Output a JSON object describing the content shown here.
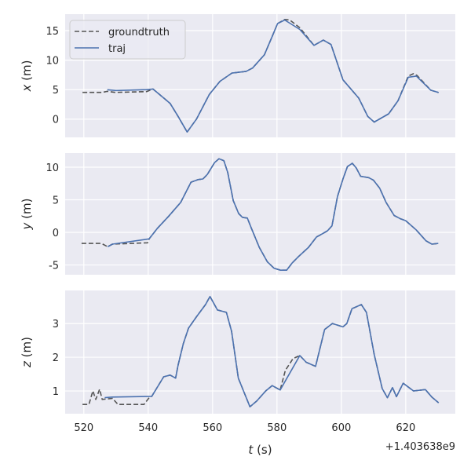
{
  "chart_data": [
    {
      "type": "line",
      "ylabel_var": "x",
      "ylabel_unit": "(m)",
      "xlim": [
        514.2,
        635.4
      ],
      "ylim": [
        -3.1,
        17.8
      ],
      "yticks": [
        0,
        5,
        10,
        15
      ],
      "grid": true,
      "legend": {
        "placement": "top-left"
      },
      "series": [
        {
          "name": "groundtruth",
          "style": "dashed",
          "color": "#555555",
          "points": [
            [
              519.6,
              4.53
            ],
            [
              525.7,
              4.53
            ],
            [
              527.3,
              4.7
            ],
            [
              529.8,
              4.53
            ],
            [
              539.5,
              4.66
            ],
            [
              541.5,
              5.1
            ],
            [
              546.8,
              2.66
            ],
            [
              549.3,
              0.45
            ],
            [
              552.1,
              -2.2
            ],
            [
              555,
              0
            ],
            [
              559,
              4.2
            ],
            [
              562.3,
              6.4
            ],
            [
              566,
              7.8
            ],
            [
              570.4,
              8.1
            ],
            [
              572.4,
              8.65
            ],
            [
              576.1,
              10.9
            ],
            [
              578.5,
              14
            ],
            [
              580.2,
              16.2
            ],
            [
              582.4,
              16.9
            ],
            [
              584,
              16.8
            ],
            [
              587.1,
              15.5
            ],
            [
              591.5,
              12.5
            ],
            [
              594.4,
              13.4
            ],
            [
              596.8,
              12.65
            ],
            [
              600.5,
              6.66
            ],
            [
              605.4,
              3.55
            ],
            [
              608.2,
              0.45
            ],
            [
              610.2,
              -0.5
            ],
            [
              614.7,
              0.9
            ],
            [
              617.6,
              3.1
            ],
            [
              620.8,
              7.3
            ],
            [
              622.4,
              7.7
            ],
            [
              623.5,
              7.4
            ],
            [
              627.8,
              4.9
            ],
            [
              630.2,
              4.5
            ]
          ]
        },
        {
          "name": "traj",
          "style": "solid",
          "color": "#4c72b0",
          "points": [
            [
              527.3,
              4.98
            ],
            [
              530,
              4.85
            ],
            [
              539.5,
              5.0
            ],
            [
              541.5,
              5.1
            ],
            [
              546.8,
              2.66
            ],
            [
              549.3,
              0.45
            ],
            [
              552.1,
              -2.2
            ],
            [
              555,
              0
            ],
            [
              559,
              4.2
            ],
            [
              562.3,
              6.4
            ],
            [
              566,
              7.8
            ],
            [
              570.4,
              8.1
            ],
            [
              572.4,
              8.65
            ],
            [
              576.1,
              10.9
            ],
            [
              578.5,
              14
            ],
            [
              580.2,
              16.2
            ],
            [
              582.4,
              16.8
            ],
            [
              587.1,
              15.2
            ],
            [
              591.5,
              12.5
            ],
            [
              594.4,
              13.4
            ],
            [
              596.8,
              12.65
            ],
            [
              600.5,
              6.66
            ],
            [
              605.4,
              3.55
            ],
            [
              608.2,
              0.45
            ],
            [
              610.2,
              -0.5
            ],
            [
              614.7,
              0.9
            ],
            [
              617.6,
              3.1
            ],
            [
              620.8,
              7.1
            ],
            [
              623.3,
              7.3
            ],
            [
              627.8,
              4.9
            ],
            [
              630.2,
              4.5
            ]
          ]
        }
      ]
    },
    {
      "type": "line",
      "ylabel_var": "y",
      "ylabel_unit": "(m)",
      "xlim": [
        514.2,
        635.4
      ],
      "ylim": [
        -6.5,
        12.17
      ],
      "yticks": [
        -5,
        0,
        5,
        10
      ],
      "grid": true,
      "series": [
        {
          "name": "groundtruth",
          "style": "dashed",
          "color": "#555555",
          "points": [
            [
              519.3,
              -1.7
            ],
            [
              525.5,
              -1.7
            ],
            [
              527.4,
              -2.2
            ],
            [
              528.9,
              -1.8
            ],
            [
              539.8,
              -1.6
            ],
            [
              540.3,
              -1.0
            ],
            [
              542.8,
              0.6
            ],
            [
              546.4,
              2.5
            ],
            [
              550.1,
              4.6
            ],
            [
              553.3,
              7.7
            ],
            [
              555.5,
              8.1
            ],
            [
              557,
              8.2
            ],
            [
              558.4,
              8.9
            ],
            [
              560.6,
              10.7
            ],
            [
              562,
              11.3
            ],
            [
              563.5,
              11
            ],
            [
              564.7,
              9.2
            ],
            [
              566.4,
              4.9
            ],
            [
              568.1,
              2.9
            ],
            [
              569.3,
              2.3
            ],
            [
              570.8,
              2.2
            ],
            [
              572,
              0.7
            ],
            [
              574.5,
              -2.3
            ],
            [
              577,
              -4.5
            ],
            [
              579.1,
              -5.5
            ],
            [
              581.1,
              -5.8
            ],
            [
              583,
              -5.8
            ],
            [
              584.7,
              -4.7
            ],
            [
              586.7,
              -3.7
            ],
            [
              589.8,
              -2.3
            ],
            [
              592.3,
              -0.7
            ],
            [
              594,
              -0.25
            ],
            [
              595.7,
              0.25
            ],
            [
              597.1,
              1.0
            ],
            [
              598.8,
              5.5
            ],
            [
              600.5,
              8.2
            ],
            [
              601.9,
              10.1
            ],
            [
              603.4,
              10.6
            ],
            [
              604.6,
              9.9
            ],
            [
              606,
              8.6
            ],
            [
              608.5,
              8.4
            ],
            [
              610,
              8.0
            ],
            [
              611.9,
              6.8
            ],
            [
              613.9,
              4.6
            ],
            [
              616.4,
              2.6
            ],
            [
              618.3,
              2.1
            ],
            [
              620,
              1.8
            ],
            [
              623.2,
              0.4
            ],
            [
              626.3,
              -1.3
            ],
            [
              628.1,
              -1.8
            ],
            [
              630.1,
              -1.7
            ]
          ]
        },
        {
          "name": "traj",
          "style": "solid",
          "color": "#4c72b0",
          "points": [
            [
              527.4,
              -2.2
            ],
            [
              528.9,
              -1.8
            ],
            [
              540.3,
              -1.0
            ],
            [
              542.8,
              0.6
            ],
            [
              546.4,
              2.5
            ],
            [
              550.1,
              4.6
            ],
            [
              553.3,
              7.7
            ],
            [
              555.5,
              8.1
            ],
            [
              557,
              8.2
            ],
            [
              558.4,
              8.9
            ],
            [
              560.6,
              10.7
            ],
            [
              562,
              11.3
            ],
            [
              563.5,
              11
            ],
            [
              564.7,
              9.2
            ],
            [
              566.4,
              4.9
            ],
            [
              568.1,
              2.9
            ],
            [
              569.3,
              2.3
            ],
            [
              570.8,
              2.2
            ],
            [
              572,
              0.7
            ],
            [
              574.5,
              -2.3
            ],
            [
              577,
              -4.5
            ],
            [
              579.1,
              -5.5
            ],
            [
              581.1,
              -5.8
            ],
            [
              583,
              -5.8
            ],
            [
              584.7,
              -4.7
            ],
            [
              586.7,
              -3.7
            ],
            [
              589.8,
              -2.3
            ],
            [
              592.3,
              -0.7
            ],
            [
              594,
              -0.25
            ],
            [
              595.7,
              0.25
            ],
            [
              597.1,
              1.0
            ],
            [
              598.8,
              5.5
            ],
            [
              600.5,
              8.2
            ],
            [
              601.9,
              10.1
            ],
            [
              603.4,
              10.6
            ],
            [
              604.6,
              9.9
            ],
            [
              606,
              8.6
            ],
            [
              608.5,
              8.4
            ],
            [
              610,
              8.0
            ],
            [
              611.9,
              6.8
            ],
            [
              613.9,
              4.6
            ],
            [
              616.4,
              2.6
            ],
            [
              618.3,
              2.1
            ],
            [
              620,
              1.8
            ],
            [
              623.2,
              0.4
            ],
            [
              626.3,
              -1.3
            ],
            [
              628.1,
              -1.8
            ],
            [
              630.1,
              -1.7
            ]
          ]
        }
      ]
    },
    {
      "type": "line",
      "ylabel_var": "z",
      "ylabel_unit": "(m)",
      "xlabel_var": "t",
      "xlabel_unit": "(s)",
      "x_offset_label": "+1.403638e9",
      "xticks": [
        520,
        540,
        560,
        580,
        600,
        620
      ],
      "xlim": [
        514.2,
        635.4
      ],
      "ylim": [
        0.326,
        3.98
      ],
      "yticks": [
        1,
        2,
        3
      ],
      "grid": true,
      "series": [
        {
          "name": "groundtruth",
          "style": "dashed",
          "color": "#555555",
          "points": [
            [
              519.6,
              0.6
            ],
            [
              521.6,
              0.6
            ],
            [
              522.8,
              1.0
            ],
            [
              523.7,
              0.75
            ],
            [
              524.9,
              1.05
            ],
            [
              525.7,
              0.75
            ],
            [
              528.9,
              0.78
            ],
            [
              530.6,
              0.6
            ],
            [
              538.7,
              0.6
            ],
            [
              540.3,
              0.8
            ],
            [
              541.1,
              0.84
            ],
            [
              544.8,
              1.42
            ],
            [
              546.8,
              1.47
            ],
            [
              548.5,
              1.38
            ],
            [
              549.3,
              1.77
            ],
            [
              550.9,
              2.4
            ],
            [
              552.5,
              2.86
            ],
            [
              555,
              3.2
            ],
            [
              557.8,
              3.56
            ],
            [
              559.2,
              3.8
            ],
            [
              561.5,
              3.4
            ],
            [
              564.3,
              3.33
            ],
            [
              565.9,
              2.77
            ],
            [
              568,
              1.38
            ],
            [
              569.6,
              1.0
            ],
            [
              571.6,
              0.53
            ],
            [
              573.7,
              0.7
            ],
            [
              576.5,
              1.0
            ],
            [
              578.5,
              1.16
            ],
            [
              581,
              1.03
            ],
            [
              582.6,
              1.61
            ],
            [
              585,
              1.96
            ],
            [
              587.1,
              2.05
            ],
            [
              589.1,
              1.85
            ],
            [
              592,
              1.73
            ],
            [
              594.8,
              2.82
            ],
            [
              597.2,
              3.0
            ],
            [
              600.5,
              2.9
            ],
            [
              601.7,
              3.0
            ],
            [
              603.3,
              3.44
            ],
            [
              606.2,
              3.56
            ],
            [
              607.8,
              3.33
            ],
            [
              610.2,
              2.08
            ],
            [
              612.7,
              1.07
            ],
            [
              614.3,
              0.8
            ],
            [
              615.9,
              1.1
            ],
            [
              617.1,
              0.83
            ],
            [
              619.2,
              1.23
            ],
            [
              622.4,
              1.0
            ],
            [
              626.1,
              1.04
            ],
            [
              628.1,
              0.82
            ],
            [
              630.2,
              0.65
            ]
          ]
        },
        {
          "name": "traj",
          "style": "solid",
          "color": "#4c72b0",
          "points": [
            [
              526.5,
              0.8
            ],
            [
              528.9,
              0.82
            ],
            [
              541.1,
              0.84
            ],
            [
              544.8,
              1.42
            ],
            [
              546.8,
              1.47
            ],
            [
              548.5,
              1.38
            ],
            [
              549.3,
              1.77
            ],
            [
              550.9,
              2.4
            ],
            [
              552.5,
              2.86
            ],
            [
              555,
              3.2
            ],
            [
              557.8,
              3.56
            ],
            [
              559.2,
              3.8
            ],
            [
              561.5,
              3.4
            ],
            [
              564.3,
              3.33
            ],
            [
              565.9,
              2.77
            ],
            [
              568,
              1.38
            ],
            [
              569.6,
              1.0
            ],
            [
              571.6,
              0.53
            ],
            [
              573.7,
              0.7
            ],
            [
              576.5,
              1.0
            ],
            [
              578.5,
              1.16
            ],
            [
              581,
              1.03
            ],
            [
              587.1,
              2.05
            ],
            [
              589.1,
              1.85
            ],
            [
              592,
              1.73
            ],
            [
              594.8,
              2.82
            ],
            [
              597.2,
              3.0
            ],
            [
              600.5,
              2.9
            ],
            [
              601.7,
              3.0
            ],
            [
              603.3,
              3.44
            ],
            [
              606.2,
              3.56
            ],
            [
              607.8,
              3.33
            ],
            [
              610.2,
              2.08
            ],
            [
              612.7,
              1.07
            ],
            [
              614.3,
              0.8
            ],
            [
              615.9,
              1.1
            ],
            [
              617.1,
              0.83
            ],
            [
              619.2,
              1.23
            ],
            [
              622.4,
              1.0
            ],
            [
              626.1,
              1.04
            ],
            [
              628.1,
              0.82
            ],
            [
              630.2,
              0.65
            ]
          ]
        }
      ]
    }
  ]
}
